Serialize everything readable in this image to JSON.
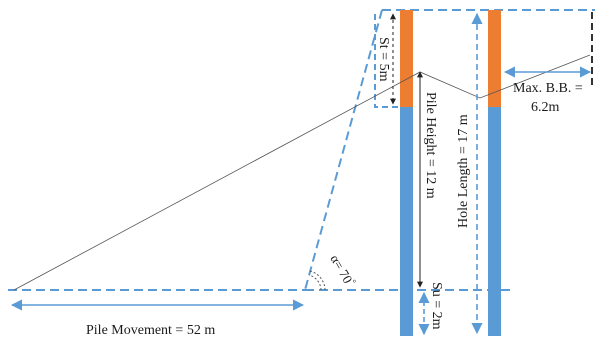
{
  "labels": {
    "stemming": "St = 5m",
    "pile_height": "Pile Height = 12 m",
    "hole_length": "Hole Length = 17 m",
    "subdrill": "Su = 2m",
    "angle": "α= 70",
    "angle_unit": "°",
    "max_bb_line1": "Max. B.B. =",
    "max_bb_line2": "6.2m",
    "pile_movement": "Pile Movement = 52 m"
  },
  "colors": {
    "stemming": "#ed7d31",
    "charge": "#5b9bd5",
    "dashed": "#5b9bd5",
    "thin_line": "#555555",
    "black_dash": "#000000"
  }
}
